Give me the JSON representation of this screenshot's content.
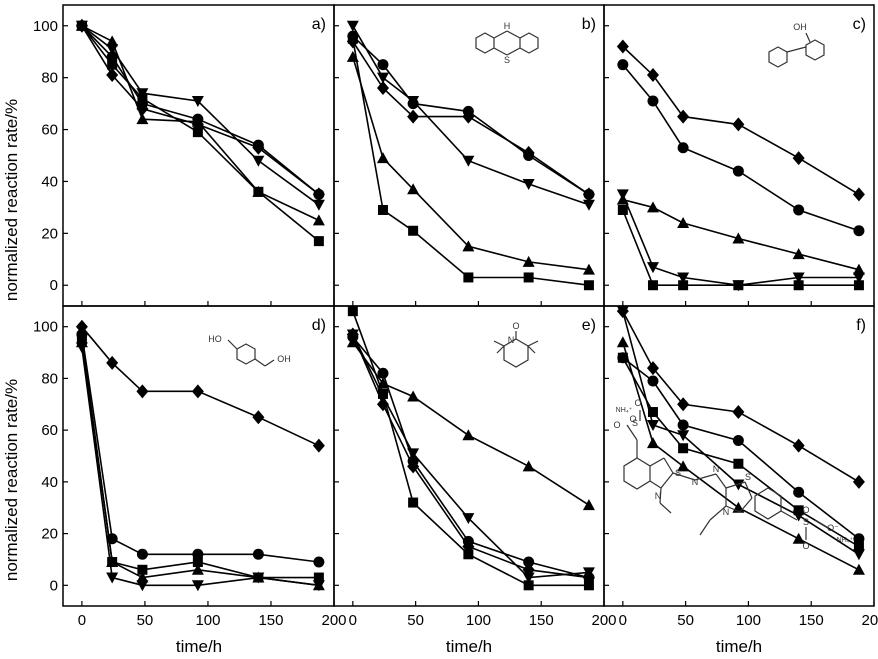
{
  "figure": {
    "ylabel": "normalized reaction rate/%",
    "xlabel": "time/h"
  },
  "chart_data": [
    {
      "type": "line",
      "panel": "a)",
      "xlim": [
        -15,
        200
      ],
      "ylim": [
        -8,
        108
      ],
      "xticks": [
        0,
        50,
        100,
        150,
        200
      ],
      "yticks": [
        0,
        20,
        40,
        60,
        80,
        100
      ],
      "series": [
        {
          "marker": "square",
          "x": [
            0,
            24,
            48,
            92,
            140,
            188
          ],
          "y": [
            100,
            85,
            72,
            59,
            36,
            17
          ]
        },
        {
          "marker": "circle",
          "x": [
            0,
            24,
            48,
            92,
            140,
            188
          ],
          "y": [
            100,
            88,
            70,
            64,
            54,
            35
          ]
        },
        {
          "marker": "triangle-up",
          "x": [
            0,
            24,
            48,
            92,
            140,
            188
          ],
          "y": [
            100,
            94,
            64,
            63,
            36,
            25
          ]
        },
        {
          "marker": "triangle-down",
          "x": [
            0,
            24,
            48,
            92,
            140,
            188
          ],
          "y": [
            100,
            91,
            74,
            71,
            48,
            31
          ]
        },
        {
          "marker": "diamond",
          "x": [
            0,
            24,
            48,
            92,
            140,
            188
          ],
          "y": [
            100,
            81,
            68,
            62,
            53,
            35
          ]
        }
      ]
    },
    {
      "type": "line",
      "panel": "b)",
      "xlim": [
        -15,
        200
      ],
      "ylim": [
        -8,
        108
      ],
      "xticks": [
        0,
        50,
        100,
        150,
        200
      ],
      "yticks": [
        0,
        20,
        40,
        60,
        80,
        100
      ],
      "molecule": "phenothiazine",
      "series": [
        {
          "marker": "square",
          "x": [
            0,
            24,
            48,
            92,
            140,
            188
          ],
          "y": [
            95,
            29,
            21,
            3,
            3,
            0
          ]
        },
        {
          "marker": "circle",
          "x": [
            0,
            24,
            48,
            92,
            140,
            188
          ],
          "y": [
            96,
            85,
            70,
            67,
            50,
            35
          ]
        },
        {
          "marker": "triangle-up",
          "x": [
            0,
            24,
            48,
            92,
            140,
            188
          ],
          "y": [
            88,
            49,
            37,
            15,
            9,
            6
          ]
        },
        {
          "marker": "triangle-down",
          "x": [
            0,
            24,
            48,
            92,
            140,
            188
          ],
          "y": [
            100,
            80,
            71,
            48,
            39,
            31
          ]
        },
        {
          "marker": "diamond",
          "x": [
            0,
            24,
            48,
            92,
            140,
            188
          ],
          "y": [
            94,
            76,
            65,
            65,
            51,
            35
          ]
        }
      ]
    },
    {
      "type": "line",
      "panel": "c)",
      "xlim": [
        -15,
        200
      ],
      "ylim": [
        -8,
        108
      ],
      "xticks": [
        0,
        50,
        100,
        150,
        200
      ],
      "yticks": [
        0,
        20,
        40,
        60,
        80,
        100
      ],
      "molecule": "2-phenylphenol",
      "series": [
        {
          "marker": "square",
          "x": [
            0,
            24,
            48,
            92,
            140,
            188
          ],
          "y": [
            29,
            0,
            0,
            0,
            0,
            0
          ]
        },
        {
          "marker": "circle",
          "x": [
            0,
            24,
            48,
            92,
            140,
            188
          ],
          "y": [
            85,
            71,
            53,
            44,
            29,
            21
          ]
        },
        {
          "marker": "triangle-up",
          "x": [
            0,
            24,
            48,
            92,
            140,
            188
          ],
          "y": [
            33,
            30,
            24,
            18,
            12,
            6
          ]
        },
        {
          "marker": "triangle-down",
          "x": [
            0,
            24,
            48,
            92,
            140,
            188
          ],
          "y": [
            35,
            7,
            3,
            0,
            3,
            3
          ]
        },
        {
          "marker": "diamond",
          "x": [
            0,
            24,
            48,
            92,
            140,
            188
          ],
          "y": [
            92,
            81,
            65,
            62,
            49,
            35
          ]
        }
      ]
    },
    {
      "type": "line",
      "panel": "d)",
      "xlim": [
        -15,
        200
      ],
      "ylim": [
        -8,
        108
      ],
      "xticks": [
        0,
        50,
        100,
        150,
        200
      ],
      "yticks": [
        0,
        20,
        40,
        60,
        80,
        100
      ],
      "molecule": "4-hydroxybenzyl alcohol",
      "series": [
        {
          "marker": "square",
          "x": [
            0,
            24,
            48,
            92,
            140,
            188
          ],
          "y": [
            95,
            9,
            6,
            9,
            3,
            3
          ]
        },
        {
          "marker": "circle",
          "x": [
            0,
            24,
            48,
            92,
            140,
            188
          ],
          "y": [
            97,
            18,
            12,
            12,
            12,
            9
          ]
        },
        {
          "marker": "triangle-up",
          "x": [
            0,
            24,
            48,
            92,
            140,
            188
          ],
          "y": [
            94,
            9,
            3,
            6,
            3,
            0
          ]
        },
        {
          "marker": "triangle-down",
          "x": [
            0,
            24,
            48,
            92,
            140,
            188
          ],
          "y": [
            92,
            3,
            0,
            0,
            3,
            0
          ]
        },
        {
          "marker": "diamond",
          "x": [
            0,
            24,
            48,
            92,
            140,
            188
          ],
          "y": [
            100,
            86,
            75,
            75,
            65,
            54
          ]
        }
      ]
    },
    {
      "type": "line",
      "panel": "e)",
      "xlim": [
        -15,
        200
      ],
      "ylim": [
        -8,
        108
      ],
      "xticks": [
        0,
        50,
        100,
        150,
        200
      ],
      "yticks": [
        0,
        20,
        40,
        60,
        80,
        100
      ],
      "molecule": "TEMPO",
      "series": [
        {
          "marker": "square",
          "x": [
            0,
            24,
            48,
            92,
            140,
            188
          ],
          "y": [
            106,
            74,
            32,
            12,
            0,
            0
          ]
        },
        {
          "marker": "circle",
          "x": [
            0,
            24,
            48,
            92,
            140,
            188
          ],
          "y": [
            96,
            82,
            48,
            17,
            9,
            3
          ]
        },
        {
          "marker": "triangle-up",
          "x": [
            0,
            24,
            48,
            92,
            140,
            188
          ],
          "y": [
            94,
            78,
            73,
            58,
            46,
            31
          ]
        },
        {
          "marker": "triangle-down",
          "x": [
            0,
            24,
            48,
            92,
            140,
            188
          ],
          "y": [
            97,
            73,
            51,
            26,
            3,
            5
          ]
        },
        {
          "marker": "diamond",
          "x": [
            0,
            24,
            48,
            92,
            140,
            188
          ],
          "y": [
            97,
            70,
            46,
            15,
            6,
            3
          ]
        }
      ]
    },
    {
      "type": "line",
      "panel": "f)",
      "xlim": [
        -15,
        200
      ],
      "ylim": [
        -8,
        108
      ],
      "xticks": [
        0,
        50,
        100,
        150,
        200
      ],
      "yticks": [
        0,
        20,
        40,
        60,
        80,
        100
      ],
      "molecule": "ABTS",
      "series": [
        {
          "marker": "square",
          "x": [
            0,
            24,
            48,
            92,
            140,
            188
          ],
          "y": [
            88,
            67,
            53,
            47,
            29,
            15
          ]
        },
        {
          "marker": "circle",
          "x": [
            0,
            24,
            48,
            92,
            140,
            188
          ],
          "y": [
            88,
            79,
            62,
            56,
            36,
            18
          ]
        },
        {
          "marker": "triangle-up",
          "x": [
            0,
            24,
            48,
            92,
            140,
            188
          ],
          "y": [
            94,
            55,
            46,
            30,
            18,
            6
          ]
        },
        {
          "marker": "triangle-down",
          "x": [
            0,
            24,
            48,
            92,
            140,
            188
          ],
          "y": [
            106,
            62,
            58,
            39,
            27,
            12
          ]
        },
        {
          "marker": "diamond",
          "x": [
            0,
            24,
            48,
            92,
            140,
            188
          ],
          "y": [
            106,
            84,
            70,
            67,
            54,
            40
          ]
        }
      ]
    }
  ]
}
